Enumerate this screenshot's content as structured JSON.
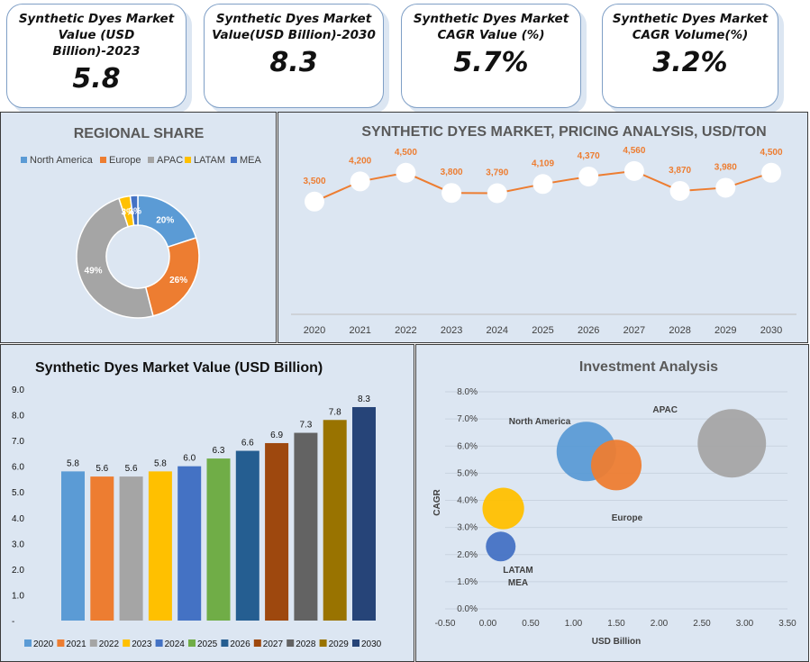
{
  "kpis": [
    {
      "title": "Synthetic Dyes Market Value (USD Billion)-2023",
      "value": "5.8"
    },
    {
      "title": "Synthetic Dyes Market Value(USD Billion)-2030",
      "value": "8.3"
    },
    {
      "title": "Synthetic Dyes Market CAGR Value (%)",
      "value": "5.7%"
    },
    {
      "title": "Synthetic Dyes Market CAGR Volume(%)",
      "value": "3.2%"
    }
  ],
  "chart_data": [
    {
      "type": "pie",
      "title": "REGIONAL SHARE",
      "categories": [
        "North America",
        "Europe",
        "APAC",
        "LATAM",
        "MEA"
      ],
      "values": [
        20,
        26,
        49,
        3,
        2
      ],
      "labels": [
        "20%",
        "26%",
        "49%",
        "3%",
        "2%"
      ],
      "colors": [
        "#5b9bd5",
        "#ed7d31",
        "#a5a5a5",
        "#ffc000",
        "#4472c4"
      ],
      "legend": "top",
      "donut": true
    },
    {
      "type": "line",
      "title": "SYNTHETIC DYES MARKET, PRICING ANALYSIS, USD/TON",
      "x": [
        "2020",
        "2021",
        "2022",
        "2023",
        "2024",
        "2025",
        "2026",
        "2027",
        "2028",
        "2029",
        "2030"
      ],
      "values": [
        3500,
        4200,
        4500,
        3800,
        3790,
        4109,
        4370,
        4560,
        3870,
        3980,
        4500
      ],
      "labels": [
        "3,500",
        "4,200",
        "4,500",
        "3,800",
        "3,790",
        "4,109",
        "4,370",
        "4,560",
        "3,870",
        "3,980",
        "4,500"
      ],
      "line_color": "#ed7d31",
      "y_axis_visible": false
    },
    {
      "type": "bar",
      "title": "Synthetic Dyes Market Value (USD Billion)",
      "categories": [
        "2020",
        "2021",
        "2022",
        "2023",
        "2024",
        "2025",
        "2026",
        "2027",
        "2028",
        "2029",
        "2030"
      ],
      "values": [
        5.8,
        5.6,
        5.6,
        5.8,
        6.0,
        6.3,
        6.6,
        6.9,
        7.3,
        7.8,
        8.3
      ],
      "colors": [
        "#5b9bd5",
        "#ed7d31",
        "#a5a5a5",
        "#ffc000",
        "#4472c4",
        "#70ad47",
        "#255e91",
        "#9e480e",
        "#636363",
        "#997300",
        "#264478"
      ],
      "ylim": [
        0,
        9
      ],
      "yticks": [
        "-",
        "1.0",
        "2.0",
        "3.0",
        "4.0",
        "5.0",
        "6.0",
        "7.0",
        "8.0",
        "9.0"
      ],
      "legend": "bottom"
    },
    {
      "type": "scatter",
      "title": "Investment Analysis",
      "xlabel": "USD Billion",
      "ylabel": "CAGR",
      "xlim": [
        -0.5,
        3.5
      ],
      "ylim": [
        0,
        8
      ],
      "xticks": [
        "-0.50",
        "0.00",
        "0.50",
        "1.00",
        "1.50",
        "2.00",
        "2.50",
        "3.00",
        "3.50"
      ],
      "yticks": [
        "0.0%",
        "1.0%",
        "2.0%",
        "3.0%",
        "4.0%",
        "5.0%",
        "6.0%",
        "7.0%",
        "8.0%"
      ],
      "series": [
        {
          "name": "North America",
          "x": 1.15,
          "y": 5.8,
          "size": 1.0,
          "color": "#5b9bd5"
        },
        {
          "name": "Europe",
          "x": 1.5,
          "y": 5.3,
          "size": 0.85,
          "color": "#ed7d31"
        },
        {
          "name": "APAC",
          "x": 2.85,
          "y": 6.1,
          "size": 1.15,
          "color": "#a5a5a5"
        },
        {
          "name": "LATAM",
          "x": 0.18,
          "y": 3.7,
          "size": 0.7,
          "color": "#ffc000"
        },
        {
          "name": "MEA",
          "x": 0.15,
          "y": 2.3,
          "size": 0.5,
          "color": "#4472c4"
        }
      ]
    }
  ]
}
